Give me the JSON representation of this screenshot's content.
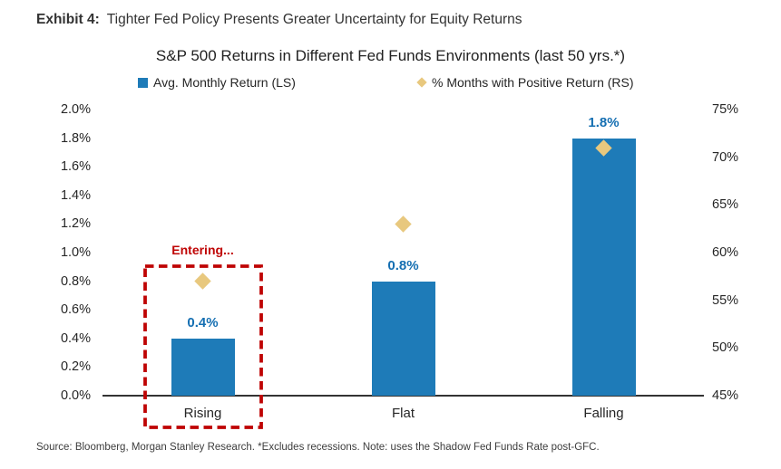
{
  "header": {
    "exhibit_label": "Exhibit 4:",
    "exhibit_title": "Tighter Fed Policy Presents Greater Uncertainty for Equity Returns"
  },
  "chart_data": {
    "type": "bar",
    "title": "S&P 500 Returns in Different Fed Funds Environments (last 50 yrs.*)",
    "categories": [
      "Rising",
      "Flat",
      "Falling"
    ],
    "series": [
      {
        "name": "Avg. Monthly Return (LS)",
        "kind": "bar",
        "axis": "left",
        "values": [
          0.4,
          0.8,
          1.8
        ],
        "labels": [
          "0.4%",
          "0.8%",
          "1.8%"
        ],
        "color": "#1e7bb8",
        "label_color": "#156fb2"
      },
      {
        "name": "% Months with Positive Return (RS)",
        "kind": "scatter",
        "marker": "diamond",
        "axis": "right",
        "values": [
          57,
          63,
          71
        ],
        "color": "#e8c87e"
      }
    ],
    "left_axis": {
      "min": 0.0,
      "max": 2.0,
      "ticks": [
        "2.0%",
        "1.8%",
        "1.6%",
        "1.4%",
        "1.2%",
        "1.0%",
        "0.8%",
        "0.6%",
        "0.4%",
        "0.2%",
        "0.0%"
      ]
    },
    "right_axis": {
      "min": 45,
      "max": 75,
      "ticks": [
        "75%",
        "70%",
        "65%",
        "60%",
        "55%",
        "50%",
        "45%"
      ]
    },
    "annotation": {
      "label": "Entering...",
      "target": "Rising",
      "color": "#bf0404"
    },
    "grid": false,
    "legend_position": "top"
  },
  "footer": {
    "source": "Source: Bloomberg, Morgan Stanley Research. *Excludes recessions. Note: uses the Shadow Fed Funds Rate post-GFC."
  }
}
